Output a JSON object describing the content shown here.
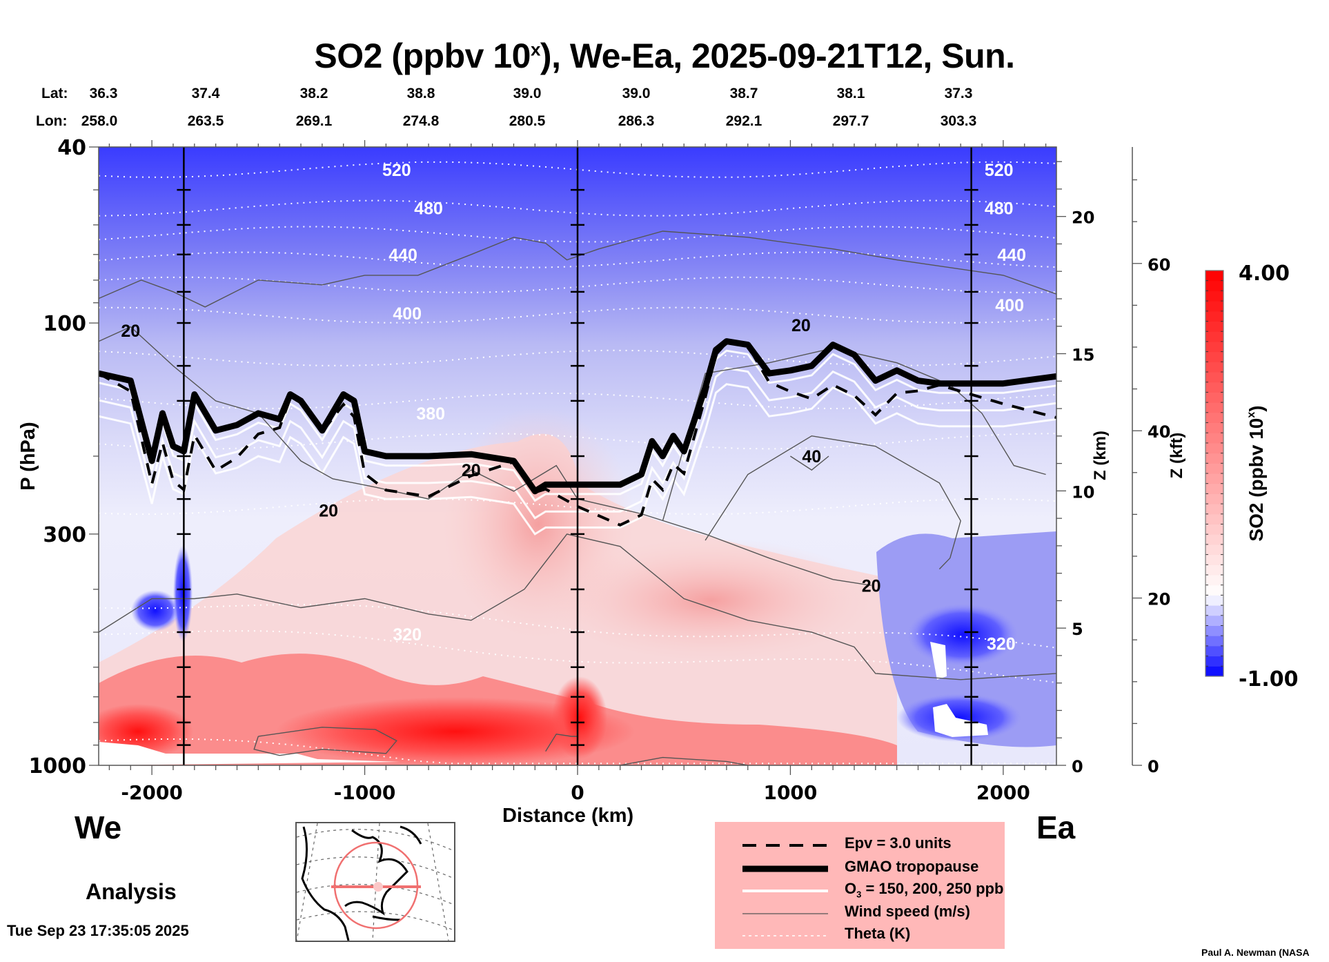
{
  "header": {
    "title_pre": "SO2 (ppbv 10",
    "title_sup": "x",
    "title_post": "), We-Ea, 2025-09-21T12, Sun."
  },
  "latlon": {
    "lat_label": "Lat:",
    "lon_label": "Lon:",
    "lat": [
      "36.3",
      "37.4",
      "38.2",
      "38.8",
      "39.0",
      "39.0",
      "38.7",
      "38.1",
      "37.3"
    ],
    "lon": [
      "258.0",
      "263.5",
      "269.1",
      "274.8",
      "280.5",
      "286.3",
      "292.1",
      "297.7",
      "303.3"
    ]
  },
  "labels": {
    "west": "We",
    "east": "Ea",
    "analysis": "Analysis",
    "timestamp": "Tue Sep 23 17:35:05 2025",
    "credit": "Paul A. Newman (NASA"
  },
  "legend": {
    "items": [
      {
        "label": "Epv = 3.0 units",
        "style": "dashed-thick"
      },
      {
        "label": "GMAO tropopause",
        "style": "solid-heavy"
      },
      {
        "label_pre": "O",
        "label_sub": "3",
        "label_post": " = 150, 200, 250 ppb",
        "style": "white-solid"
      },
      {
        "label": "Wind speed (m/s)",
        "style": "thin-gray"
      },
      {
        "label": "Theta (K)",
        "style": "white-dotted"
      }
    ],
    "background": "#ffb8b8"
  },
  "colorbar": {
    "title_pre": "SO2 (ppbv 10",
    "title_sup": "x",
    "title_post": ")",
    "max_label": "4.00",
    "min_label": "-1.00",
    "min": -1.0,
    "max": 4.0,
    "levels": 40,
    "low_color": "#0000ff",
    "mid_color": "#ffffff",
    "high_color": "#ff0000"
  },
  "minimap": {
    "icon": "north-america-locator-map",
    "track_color": "#f08080"
  },
  "chart_data": {
    "type": "heatmap",
    "title": "SO2 (ppbv 10^x), We-Ea, 2025-09-21T12, Sun.",
    "xlabel": "Distance (km)",
    "ylabel": "P (hPa)",
    "ylabel_right1": "Z (km)",
    "ylabel_right2": "Z (kft)",
    "xlim": [
      -2250,
      2250
    ],
    "ylim_hpa": [
      1000,
      40
    ],
    "yscale": "log",
    "x_ticks": [
      -2000,
      -1000,
      0,
      1000,
      2000
    ],
    "x_tick_labels": [
      "-2000",
      "-1000",
      "0",
      "1000",
      "2000"
    ],
    "y_ticks": [
      40,
      100,
      300,
      1000
    ],
    "y_tick_labels": [
      "40",
      "100",
      "300",
      "1000"
    ],
    "z_km_ticks": [
      0,
      5,
      10,
      15,
      20
    ],
    "z_km_tick_labels": [
      "0",
      "5",
      "10",
      "15",
      "20"
    ],
    "z_kft_ticks": [
      0,
      20,
      40,
      60
    ],
    "z_kft_tick_labels": [
      "0",
      "20",
      "40",
      "60"
    ],
    "vertical_markers_km": [
      -1850,
      0,
      1850
    ],
    "colorbar_range": [
      -1.0,
      4.0
    ],
    "theta_labels": [
      {
        "value": "520",
        "x": -850,
        "p": 45
      },
      {
        "value": "480",
        "x": -700,
        "p": 55
      },
      {
        "value": "440",
        "x": -820,
        "p": 70
      },
      {
        "value": "400",
        "x": -800,
        "p": 95
      },
      {
        "value": "380",
        "x": -690,
        "p": 160
      },
      {
        "value": "320",
        "x": -800,
        "p": 505
      },
      {
        "value": "520",
        "x": 1980,
        "p": 45
      },
      {
        "value": "480",
        "x": 1980,
        "p": 55
      },
      {
        "value": "440",
        "x": 2040,
        "p": 70
      },
      {
        "value": "400",
        "x": 2030,
        "p": 91
      },
      {
        "value": "320",
        "x": 1990,
        "p": 530
      }
    ],
    "wind_labels": [
      {
        "value": "20",
        "x": -2100,
        "p": 104
      },
      {
        "value": "20",
        "x": -1170,
        "p": 265
      },
      {
        "value": "20",
        "x": -500,
        "p": 215
      },
      {
        "value": "20",
        "x": 1050,
        "p": 101
      },
      {
        "value": "40",
        "x": 1100,
        "p": 200
      },
      {
        "value": "20",
        "x": 1380,
        "p": 392
      }
    ],
    "tropopause_hpa": [
      [
        -2250,
        130
      ],
      [
        -2100,
        135
      ],
      [
        -2000,
        205
      ],
      [
        -1950,
        160
      ],
      [
        -1900,
        190
      ],
      [
        -1850,
        195
      ],
      [
        -1800,
        145
      ],
      [
        -1700,
        175
      ],
      [
        -1600,
        170
      ],
      [
        -1500,
        160
      ],
      [
        -1400,
        165
      ],
      [
        -1350,
        145
      ],
      [
        -1300,
        150
      ],
      [
        -1200,
        175
      ],
      [
        -1100,
        145
      ],
      [
        -1050,
        150
      ],
      [
        -1000,
        195
      ],
      [
        -900,
        200
      ],
      [
        -700,
        200
      ],
      [
        -500,
        198
      ],
      [
        -300,
        205
      ],
      [
        -200,
        240
      ],
      [
        -150,
        232
      ],
      [
        0,
        232
      ],
      [
        200,
        232
      ],
      [
        300,
        220
      ],
      [
        350,
        185
      ],
      [
        400,
        200
      ],
      [
        450,
        180
      ],
      [
        500,
        195
      ],
      [
        600,
        140
      ],
      [
        650,
        115
      ],
      [
        700,
        110
      ],
      [
        800,
        112
      ],
      [
        900,
        130
      ],
      [
        1000,
        128
      ],
      [
        1100,
        125
      ],
      [
        1200,
        112
      ],
      [
        1300,
        118
      ],
      [
        1400,
        135
      ],
      [
        1500,
        128
      ],
      [
        1600,
        135
      ],
      [
        1700,
        137
      ],
      [
        2000,
        137
      ],
      [
        2250,
        132
      ]
    ],
    "series_note": "Filled SO2 field: blue (negative log) aloft and in upper troposphere; red near surface west of 500 km and below 400 hPa; strong blue pocket near 1550-1850 km below 600 hPa"
  }
}
